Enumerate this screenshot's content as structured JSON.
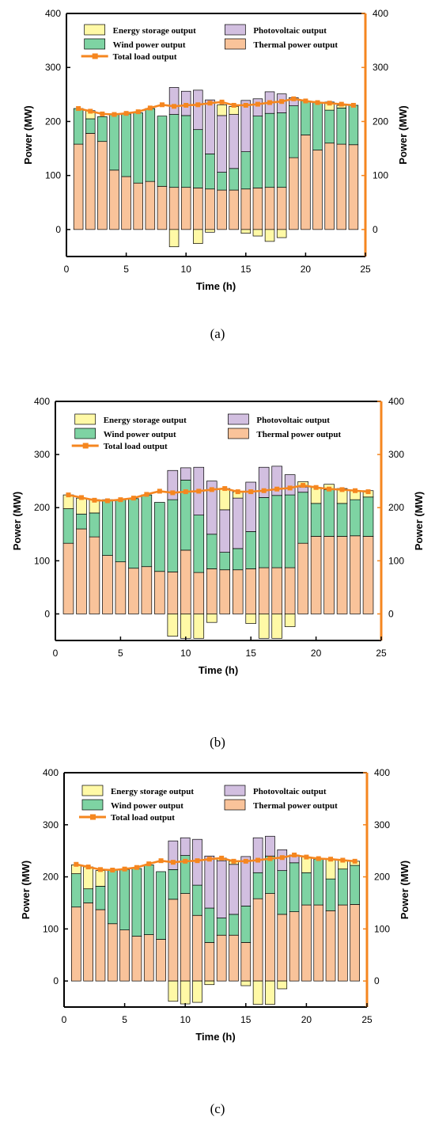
{
  "colors": {
    "storage": "#FFF9A6",
    "wind": "#7ED3A3",
    "pv": "#D2BFE0",
    "thermal": "#F9C39A",
    "load": "#F5861F",
    "border": "#000000"
  },
  "panel_labels": [
    "(a)",
    "(b)",
    "(c)"
  ],
  "chart_data": [
    {
      "type": "bar",
      "stacked": true,
      "xlabel": "Time (h)",
      "ylabel": "Power (MW)",
      "ylabel_right": "Power (MW)",
      "xlim": [
        0,
        25
      ],
      "ylim": [
        -50,
        400
      ],
      "xticks": [
        0,
        5,
        10,
        15,
        20,
        25
      ],
      "yticks": [
        0,
        100,
        200,
        300,
        400
      ],
      "legend": [
        "Energy storage output",
        "Photovoltaic output",
        "Wind power output",
        "Thermal power output",
        "Total load output"
      ],
      "x": [
        1,
        2,
        3,
        4,
        5,
        6,
        7,
        8,
        9,
        10,
        11,
        12,
        13,
        14,
        15,
        16,
        17,
        18,
        19,
        20,
        21,
        22,
        23,
        24
      ],
      "series": [
        {
          "name": "Thermal power output",
          "key": "thermal",
          "values": [
            158,
            178,
            163,
            110,
            98,
            86,
            89,
            80,
            78,
            78,
            77,
            75,
            73,
            73,
            75,
            77,
            78,
            78,
            133,
            175,
            147,
            160,
            158,
            157
          ]
        },
        {
          "name": "Wind power output",
          "key": "wind",
          "values": [
            66,
            27,
            46,
            104,
            116,
            130,
            135,
            130,
            135,
            133,
            108,
            65,
            33,
            40,
            69,
            133,
            137,
            138,
            96,
            63,
            88,
            61,
            67,
            73
          ]
        },
        {
          "name": "Photovoltaic output",
          "key": "pv",
          "values": [
            0,
            0,
            0,
            0,
            0,
            0,
            0,
            0,
            50,
            45,
            73,
            100,
            105,
            100,
            95,
            32,
            40,
            35,
            15,
            0,
            0,
            0,
            0,
            0
          ]
        },
        {
          "name": "Energy storage output",
          "key": "storage",
          "values": [
            0,
            15,
            0,
            0,
            0,
            0,
            0,
            0,
            -32,
            0,
            -26,
            -5,
            20,
            15,
            -7,
            -12,
            -22,
            -15,
            0,
            0,
            0,
            15,
            5,
            0
          ]
        }
      ],
      "load": [
        224,
        219,
        214,
        213,
        215,
        218,
        225,
        231,
        228,
        230,
        231,
        234,
        236,
        230,
        230,
        232,
        235,
        237,
        242,
        238,
        235,
        234,
        232,
        230
      ]
    },
    {
      "type": "bar",
      "stacked": true,
      "xlabel": "Time (h)",
      "ylabel": "Power (MW)",
      "ylabel_right": "Power (MW)",
      "xlim": [
        0,
        25
      ],
      "ylim": [
        -50,
        400
      ],
      "xticks": [
        0,
        5,
        10,
        15,
        20,
        25
      ],
      "yticks": [
        0,
        100,
        200,
        300,
        400
      ],
      "legend": [
        "Energy storage output",
        "Photovoltaic output",
        "Wind power output",
        "Thermal power output",
        "Total load output"
      ],
      "x": [
        1,
        2,
        3,
        4,
        5,
        6,
        7,
        8,
        9,
        10,
        11,
        12,
        13,
        14,
        15,
        16,
        17,
        18,
        19,
        20,
        21,
        22,
        23,
        24
      ],
      "series": [
        {
          "name": "Thermal power output",
          "key": "thermal",
          "values": [
            133,
            160,
            145,
            110,
            98,
            86,
            89,
            80,
            79,
            120,
            78,
            85,
            83,
            83,
            85,
            87,
            87,
            87,
            133,
            146,
            146,
            146,
            147,
            146
          ]
        },
        {
          "name": "Wind power output",
          "key": "wind",
          "values": [
            65,
            28,
            45,
            105,
            117,
            131,
            135,
            130,
            136,
            132,
            108,
            65,
            33,
            40,
            70,
            132,
            136,
            137,
            96,
            62,
            88,
            62,
            68,
            74
          ]
        },
        {
          "name": "Photovoltaic output",
          "key": "pv",
          "values": [
            0,
            0,
            0,
            0,
            0,
            0,
            0,
            0,
            55,
            23,
            90,
            100,
            80,
            95,
            93,
            57,
            55,
            38,
            10,
            0,
            0,
            0,
            0,
            0
          ]
        },
        {
          "name": "Energy storage output",
          "key": "storage",
          "values": [
            26,
            30,
            25,
            0,
            0,
            0,
            0,
            0,
            -42,
            -46,
            -46,
            -16,
            40,
            12,
            -18,
            -46,
            -46,
            -24,
            10,
            30,
            10,
            28,
            17,
            12
          ]
        }
      ],
      "load": [
        224,
        219,
        214,
        213,
        215,
        218,
        225,
        231,
        228,
        230,
        231,
        234,
        236,
        230,
        230,
        232,
        235,
        237,
        242,
        238,
        235,
        234,
        232,
        230
      ]
    },
    {
      "type": "bar",
      "stacked": true,
      "xlabel": "Time (h)",
      "ylabel": "Power (MW)",
      "ylabel_right": "Power (MW)",
      "xlim": [
        0,
        25
      ],
      "ylim": [
        -50,
        400
      ],
      "xticks": [
        0,
        5,
        10,
        15,
        20,
        25
      ],
      "yticks": [
        0,
        100,
        200,
        300,
        400
      ],
      "legend": [
        "Energy storage output",
        "Photovoltaic output",
        "Wind power output",
        "Thermal power output",
        "Total load output"
      ],
      "x": [
        1,
        2,
        3,
        4,
        5,
        6,
        7,
        8,
        9,
        10,
        11,
        12,
        13,
        14,
        15,
        16,
        17,
        18,
        19,
        20,
        21,
        22,
        23,
        24
      ],
      "series": [
        {
          "name": "Thermal power output",
          "key": "thermal",
          "values": [
            142,
            150,
            137,
            110,
            98,
            86,
            89,
            80,
            157,
            168,
            126,
            74,
            88,
            88,
            74,
            158,
            168,
            128,
            133,
            146,
            146,
            135,
            146,
            147
          ]
        },
        {
          "name": "Wind power output",
          "key": "wind",
          "values": [
            64,
            27,
            45,
            104,
            116,
            130,
            134,
            130,
            57,
            73,
            58,
            66,
            33,
            40,
            70,
            50,
            72,
            84,
            94,
            62,
            88,
            61,
            69,
            75
          ]
        },
        {
          "name": "Photovoltaic output",
          "key": "pv",
          "values": [
            0,
            0,
            0,
            0,
            0,
            0,
            0,
            0,
            55,
            34,
            88,
            100,
            110,
            96,
            95,
            67,
            38,
            40,
            15,
            0,
            0,
            0,
            0,
            0
          ]
        },
        {
          "name": "Energy storage output",
          "key": "storage",
          "values": [
            17,
            42,
            30,
            0,
            0,
            0,
            0,
            0,
            -39,
            -44,
            -41,
            -7,
            5,
            6,
            -9,
            -45,
            -45,
            -15,
            0,
            30,
            0,
            38,
            17,
            8
          ]
        }
      ],
      "load": [
        224,
        219,
        214,
        213,
        215,
        218,
        225,
        231,
        228,
        230,
        231,
        234,
        236,
        230,
        230,
        232,
        235,
        237,
        242,
        238,
        235,
        234,
        232,
        230
      ]
    }
  ]
}
